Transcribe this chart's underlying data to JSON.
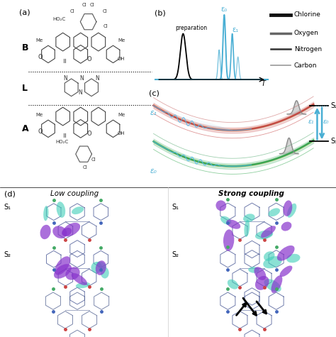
{
  "bg_color": "#ffffff",
  "panel_a_label": "(a)",
  "panel_b_label": "(b)",
  "panel_c_label": "(c)",
  "panel_d_label": "(d)",
  "section_B": "B",
  "section_L": "L",
  "section_A": "A",
  "preparation_label": "preparation",
  "T_label": "T",
  "epsilon0_label": "ε₀",
  "epsilon1_label": "ε₁",
  "legend_items": [
    "Chlorine",
    "Oxygen",
    "Nitrogen",
    "Carbon"
  ],
  "legend_lw": [
    3.5,
    2.5,
    1.8,
    1.2
  ],
  "S1_label": "S₁",
  "S2_label": "S₂",
  "low_coupling": "Low coupling",
  "strong_coupling": "Strong coupling",
  "blue_color": "#4aafd4",
  "cyan_color": "#3ecdb8",
  "purple_color": "#8833cc",
  "mol_color": "#444488",
  "green_mol": "#44aa66",
  "red_mol": "#cc4444",
  "blue_mol": "#4466bb"
}
